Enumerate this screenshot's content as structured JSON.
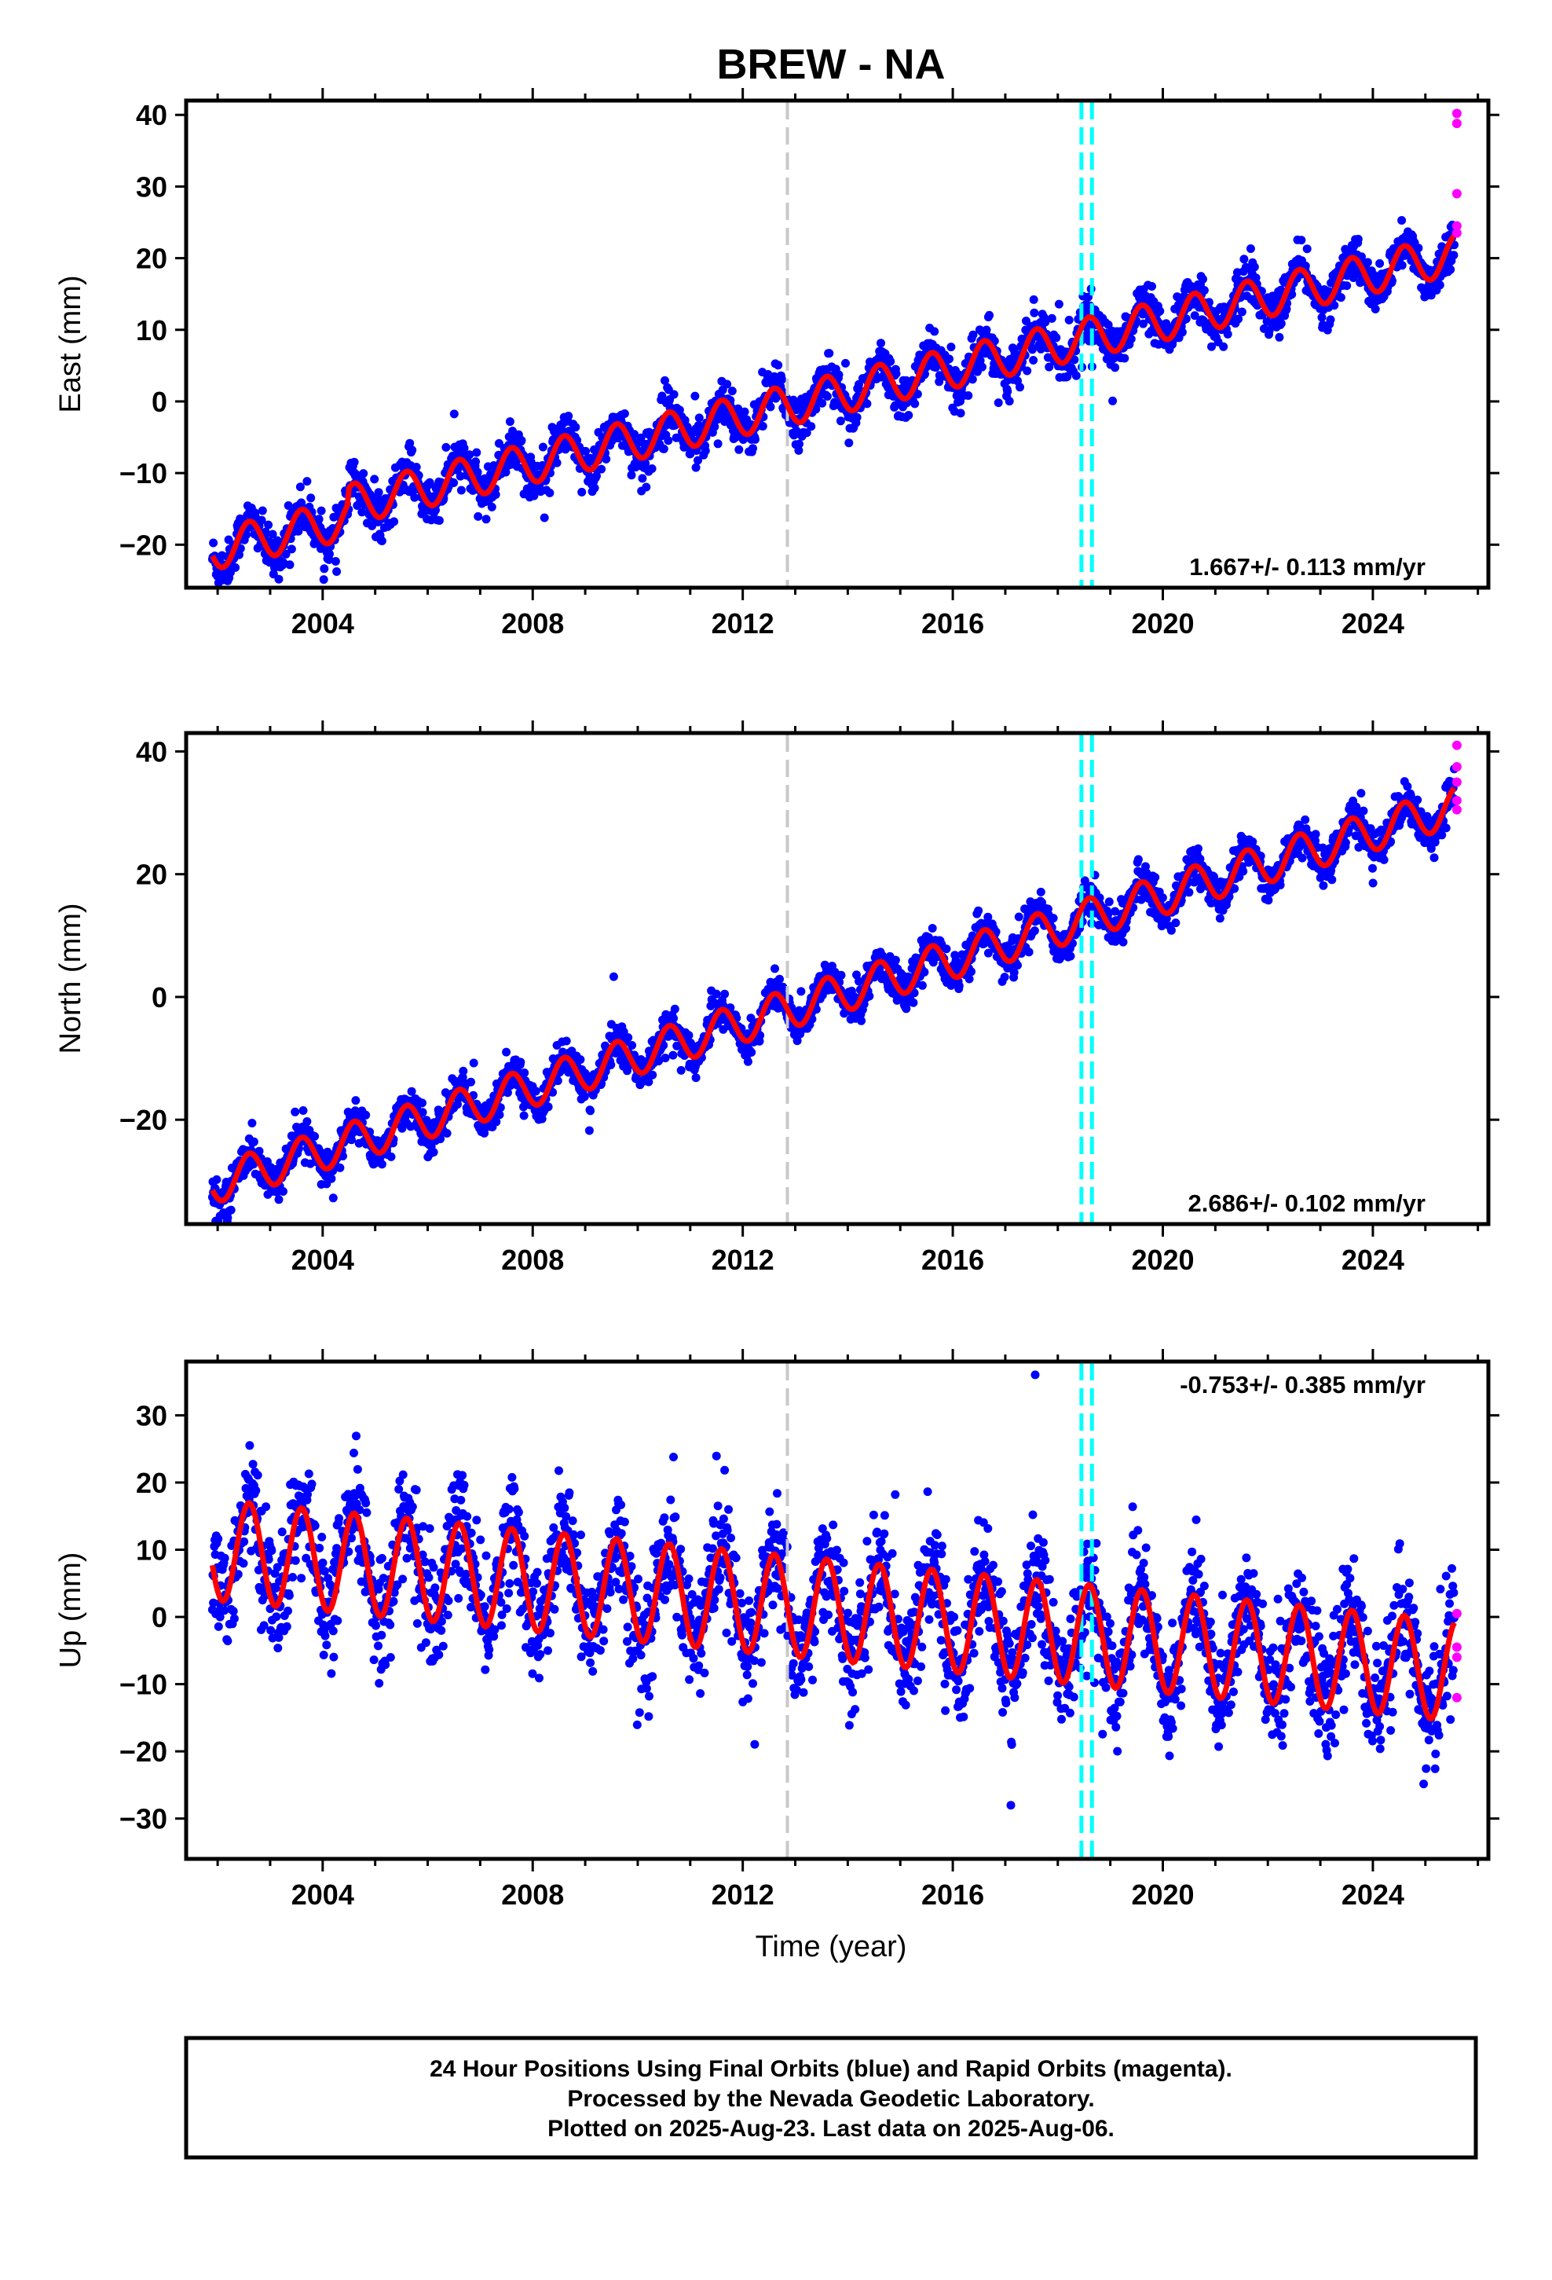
{
  "title": "BREW - NA",
  "x_axis_label": "Time (year)",
  "x_tick_labels": [
    "2004",
    "2008",
    "2012",
    "2016",
    "2020",
    "2024"
  ],
  "colors": {
    "final_orbits": "#0000ff",
    "rapid_orbits": "#ff00ff",
    "model_fit": "#ff0000",
    "equipment_change": "#00ffff",
    "other_event": "#c8c8c8"
  },
  "chart_data": [
    {
      "type": "scatter",
      "ylabel": "East (mm)",
      "xlim": [
        2001.4,
        2026.2
      ],
      "ylim": [
        -26,
        42
      ],
      "yticks": [
        -20,
        -10,
        0,
        10,
        20,
        30,
        40
      ],
      "x_ticks": [
        2004,
        2008,
        2012,
        2016,
        2020,
        2024
      ],
      "grid": false,
      "rate_label": "1.667+/- 0.113 mm/yr",
      "rate_position": "bottom-right",
      "series": [
        {
          "role": "final_orbits",
          "x_start": 2001.9,
          "x_end": 2025.55,
          "trend_start": -18.7,
          "trend_end": 20.5,
          "seasonal_amplitude": 2.8,
          "noise": 1.5,
          "early_end": 2004.5,
          "early_offset": -2.0
        },
        {
          "role": "rapid_orbits",
          "x": [
            2025.6,
            2025.6,
            2025.6,
            2025.6,
            2025.6
          ],
          "y": [
            40.2,
            38.8,
            29.0,
            24.5,
            23.5
          ]
        },
        {
          "role": "model_fit"
        }
      ],
      "vertical_lines": [
        {
          "x": 2012.85,
          "kind": "other_event"
        },
        {
          "x": 2018.45,
          "kind": "equipment_change"
        },
        {
          "x": 2018.65,
          "kind": "equipment_change"
        }
      ]
    },
    {
      "type": "scatter",
      "ylabel": "North (mm)",
      "xlim": [
        2001.4,
        2026.2
      ],
      "ylim": [
        -37,
        43
      ],
      "yticks": [
        -20,
        0,
        20,
        40
      ],
      "x_ticks": [
        2004,
        2008,
        2012,
        2016,
        2020,
        2024
      ],
      "grid": false,
      "rate_label": "2.686+/- 0.102 mm/yr",
      "rate_position": "bottom-right",
      "series": [
        {
          "role": "final_orbits",
          "x_start": 2001.9,
          "x_end": 2025.55,
          "trend_start": -30.5,
          "trend_end": 31.0,
          "seasonal_amplitude": 3.2,
          "noise": 1.5,
          "early_end": 2001.9,
          "early_offset": 0
        },
        {
          "role": "rapid_orbits",
          "x": [
            2025.6,
            2025.6,
            2025.6,
            2025.6,
            2025.6
          ],
          "y": [
            41.0,
            37.5,
            35.0,
            32.0,
            30.5
          ]
        },
        {
          "role": "model_fit"
        }
      ],
      "vertical_lines": [
        {
          "x": 2012.85,
          "kind": "other_event"
        },
        {
          "x": 2018.45,
          "kind": "equipment_change"
        },
        {
          "x": 2018.65,
          "kind": "equipment_change"
        }
      ]
    },
    {
      "type": "scatter",
      "ylabel": "Up (mm)",
      "xlim": [
        2001.4,
        2026.2
      ],
      "ylim": [
        -36,
        38
      ],
      "yticks": [
        -30,
        -20,
        -10,
        0,
        10,
        20,
        30
      ],
      "x_ticks": [
        2004,
        2008,
        2012,
        2016,
        2020,
        2024
      ],
      "grid": false,
      "rate_label": "-0.753+/- 0.385 mm/yr",
      "rate_position": "top-right",
      "series": [
        {
          "role": "final_orbits",
          "x_start": 2001.9,
          "x_end": 2025.55,
          "trend_start": 10.0,
          "trend_end": -8.0,
          "seasonal_amplitude": 7.5,
          "noise": 4.2,
          "early_end": 2001.9,
          "early_offset": 0
        },
        {
          "role": "rapid_orbits",
          "x": [
            2025.6,
            2025.6,
            2025.6,
            2025.6
          ],
          "y": [
            0.5,
            -4.5,
            -6.0,
            -12.0
          ]
        },
        {
          "role": "model_fit"
        }
      ],
      "vertical_lines": [
        {
          "x": 2012.85,
          "kind": "other_event"
        },
        {
          "x": 2018.45,
          "kind": "equipment_change"
        },
        {
          "x": 2018.65,
          "kind": "equipment_change"
        }
      ]
    }
  ],
  "footer": {
    "lines": [
      "24 Hour Positions Using Final Orbits (blue) and Rapid Orbits (magenta).",
      "Processed by the Nevada Geodetic Laboratory.",
      "Plotted on 2025-Aug-23. Last data on 2025-Aug-06."
    ]
  }
}
